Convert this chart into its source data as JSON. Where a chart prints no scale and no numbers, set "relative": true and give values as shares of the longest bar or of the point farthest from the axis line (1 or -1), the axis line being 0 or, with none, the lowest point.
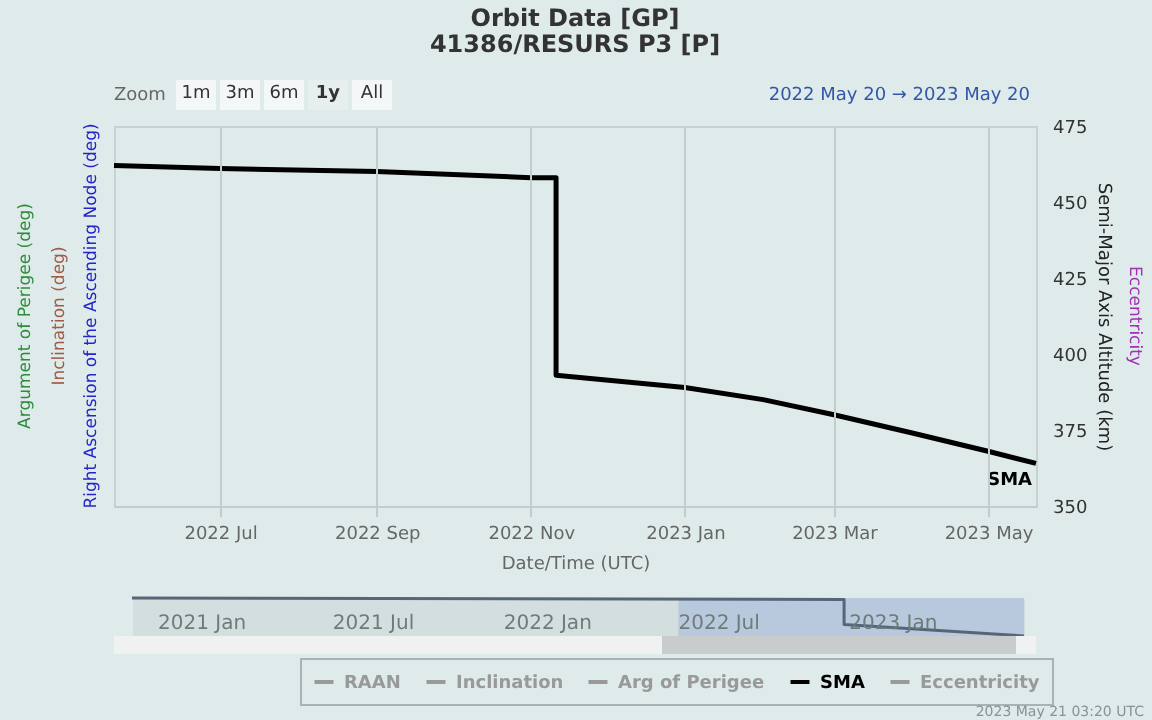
{
  "chart_data": [
    {
      "type": "line",
      "title": "Orbit Data [GP]",
      "subtitle": "41386/RESURS P3 [P]",
      "xlabel": "Date/Time (UTC)",
      "ylabel": "Semi-Major Axis Altitude (km)",
      "xlim": [
        "2022-05-20",
        "2023-05-20"
      ],
      "xticks": [
        {
          "value": "2022-07-01",
          "label": "2022 Jul"
        },
        {
          "value": "2022-09-01",
          "label": "2022 Sep"
        },
        {
          "value": "2022-11-01",
          "label": "2022 Nov"
        },
        {
          "value": "2023-01-01",
          "label": "2023 Jan"
        },
        {
          "value": "2023-03-01",
          "label": "2023 Mar"
        },
        {
          "value": "2023-05-01",
          "label": "2023 May"
        }
      ],
      "ylim": [
        350,
        475
      ],
      "yticks": [
        350,
        375,
        400,
        425,
        450,
        475
      ],
      "grid": "x",
      "legend": "bottom",
      "series": [
        {
          "name": "RAAN",
          "color": "#999999"
        },
        {
          "name": "Inclination",
          "color": "#999999"
        },
        {
          "name": "Arg of Perigee",
          "color": "#999999"
        },
        {
          "name": "SMA",
          "color": "#000000",
          "x": [
            "2022-05-20",
            "2022-07-01",
            "2022-09-01",
            "2022-11-01",
            "2022-11-11",
            "2022-11-11",
            "2023-01-01",
            "2023-02-01",
            "2023-03-01",
            "2023-04-01",
            "2023-05-01",
            "2023-05-20"
          ],
          "values": [
            462,
            461,
            460,
            458,
            458,
            393,
            389,
            385,
            380,
            374,
            368,
            364
          ]
        },
        {
          "name": "Eccentricity",
          "color": "#999999"
        }
      ],
      "annotations": [
        "Zoom",
        "1m",
        "3m",
        "6m",
        "1y",
        "All",
        "2022 May 20 → 2023 May 20",
        "Right Ascension of the Ascending Node (deg)",
        "Inclination (deg)",
        "Argument of Perigee (deg)",
        "Eccentricity",
        "2023 May 21 03:20 UTC"
      ]
    },
    {
      "type": "line",
      "relative": true,
      "tick_labels": "x",
      "xlim": [
        "2020-10-20",
        "2023-05-20"
      ],
      "xticks": [
        {
          "value": "2021-01-01",
          "label": "2021 Jan"
        },
        {
          "value": "2021-07-01",
          "label": "2021 Jul"
        },
        {
          "value": "2022-01-01",
          "label": "2022 Jan"
        },
        {
          "value": "2022-07-01",
          "label": "2022 Jul"
        },
        {
          "value": "2023-01-01",
          "label": "2023 Jan"
        }
      ],
      "series": [
        {
          "color": "#556677",
          "x": [
            "2020-10-20",
            "2022-11-11",
            "2022-11-11",
            "2023-05-20"
          ],
          "values": [
            1,
            0.96,
            0.3,
            0
          ]
        }
      ],
      "bands": [
        {
          "axis": "x",
          "from": "2022-05-20",
          "to": "2023-05-20",
          "color": "#b4c6dd"
        }
      ]
    }
  ]
}
